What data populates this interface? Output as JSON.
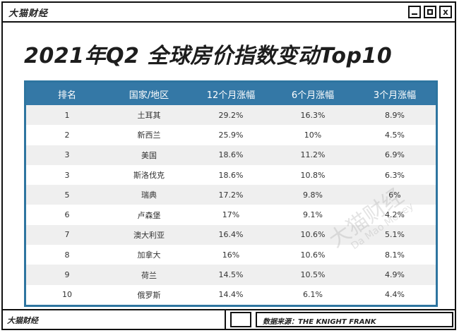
{
  "window": {
    "app_name": "大猫财经",
    "min_label": "",
    "max_label": "",
    "close_label": "x"
  },
  "title": "2021年Q2 全球房价指数变动Top10",
  "table": {
    "headers": [
      "排名",
      "国家/地区",
      "12个月涨幅",
      "6个月涨幅",
      "3个月涨幅"
    ],
    "rows": [
      [
        "1",
        "土耳其",
        "29.2%",
        "16.3%",
        "8.9%"
      ],
      [
        "2",
        "新西兰",
        "25.9%",
        "10%",
        "4.5%"
      ],
      [
        "3",
        "美国",
        "18.6%",
        "11.2%",
        "6.9%"
      ],
      [
        "3",
        "斯洛伐克",
        "18.6%",
        "10.8%",
        "6.3%"
      ],
      [
        "5",
        "瑞典",
        "17.2%",
        "9.8%",
        "6%"
      ],
      [
        "6",
        "卢森堡",
        "17%",
        "9.1%",
        "4.2%"
      ],
      [
        "7",
        "澳大利亚",
        "16.4%",
        "10.6%",
        "5.1%"
      ],
      [
        "8",
        "加拿大",
        "16%",
        "10.6%",
        "8.1%"
      ],
      [
        "9",
        "荷兰",
        "14.5%",
        "10.5%",
        "4.9%"
      ],
      [
        "10",
        "俄罗斯",
        "14.4%",
        "6.1%",
        "4.4%"
      ]
    ]
  },
  "watermark": {
    "cn": "大猫财经",
    "en": "Da Mao Money"
  },
  "statusbar": {
    "left": "大猫财经",
    "source": "数据来源：THE KNIGHT FRANK"
  }
}
